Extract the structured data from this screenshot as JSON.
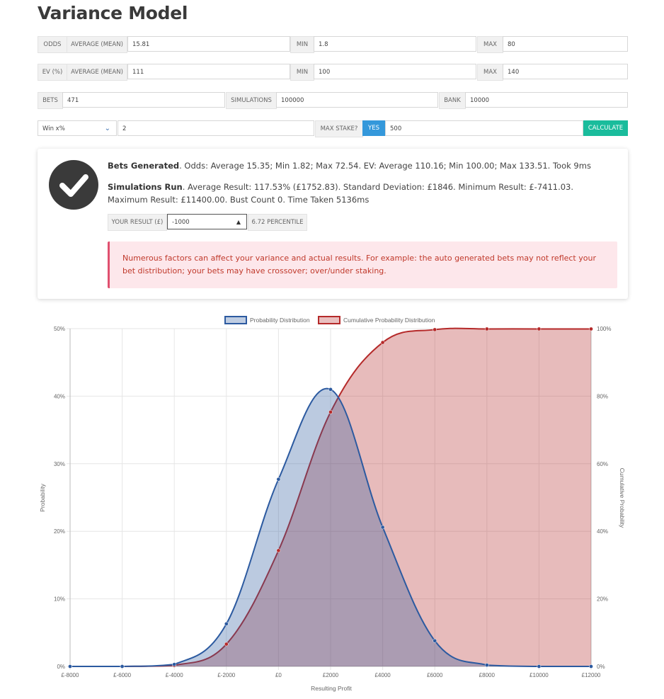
{
  "page": {
    "title": "Variance Model"
  },
  "odds": {
    "label": "ODDS",
    "avg_label": "AVERAGE (MEAN)",
    "avg_value": "15.81",
    "min_label": "MIN",
    "min_value": "1.8",
    "max_label": "MAX",
    "max_value": "80"
  },
  "ev": {
    "label": "EV (%)",
    "avg_label": "AVERAGE (MEAN)",
    "avg_value": "111",
    "min_label": "MIN",
    "min_value": "100",
    "max_label": "MAX",
    "max_value": "140"
  },
  "bets": {
    "label": "BETS",
    "value": "471",
    "sim_label": "SIMULATIONS",
    "sim_value": "100000",
    "bank_label": "BANK",
    "bank_value": "10000"
  },
  "controls": {
    "mode_selected": "Win x%",
    "mode_value": "2",
    "max_stake_label": "MAX STAKE?",
    "yes_label": "YES",
    "max_stake_value": "500",
    "calculate_label": "CALCULATE"
  },
  "result": {
    "bets_generated_title": "Bets Generated",
    "bets_generated_text": ". Odds: Average 15.35; Min 1.82; Max 72.54. EV: Average 110.16; Min 100.00; Max 133.51. Took 9ms",
    "simulations_title": "Simulations Run",
    "simulations_text": ". Average Result: 117.53% (£1752.83). Standard Deviation: £1846. Minimum Result: £-7411.03. Maximum Result: £11400.00. Bust Count 0. Time Taken 5136ms",
    "your_result_label": "YOUR RESULT (£)",
    "your_result_value": "-1000",
    "percentile": "6.72 PERCENTILE",
    "warning": "Numerous factors can affect your variance and actual results. For example: the auto generated bets may not reflect your bet distribution; your bets may have crossover; over/under staking."
  },
  "colors": {
    "prob": "#2c5aa0",
    "cum": "#b52a2a",
    "calc": "#1abc9c",
    "yes": "#3498db"
  },
  "chart_data": {
    "type": "line",
    "xlabel": "Resulting Profit",
    "ylabel": "Probability",
    "y2label": "Cumulative Probability",
    "x": [
      -8000,
      -6000,
      -4000,
      -2000,
      0,
      2000,
      4000,
      6000,
      8000,
      10000,
      12000
    ],
    "x_tick_labels": [
      "£-8000",
      "£-6000",
      "£-4000",
      "£-2000",
      "£0",
      "£2000",
      "£4000",
      "£6000",
      "£8000",
      "£10000",
      "£12000"
    ],
    "y_ticks": [
      "0%",
      "10%",
      "20%",
      "30%",
      "40%",
      "50%"
    ],
    "y2_ticks": [
      "0%",
      "20%",
      "40%",
      "60%",
      "80%",
      "100%"
    ],
    "ylim": [
      0,
      50
    ],
    "y2lim": [
      0,
      100
    ],
    "legend": "top",
    "series": [
      {
        "name": "Probability Distribution",
        "axis": "left",
        "values": [
          0,
          0,
          0.3,
          6.3,
          27.7,
          41,
          20.6,
          3.8,
          0.2,
          0,
          0
        ]
      },
      {
        "name": "Cumulative Probability Distribution",
        "axis": "right",
        "values": [
          0,
          0,
          0.3,
          6.6,
          34.3,
          75.3,
          95.9,
          99.7,
          99.9,
          99.9,
          99.9
        ]
      }
    ]
  }
}
